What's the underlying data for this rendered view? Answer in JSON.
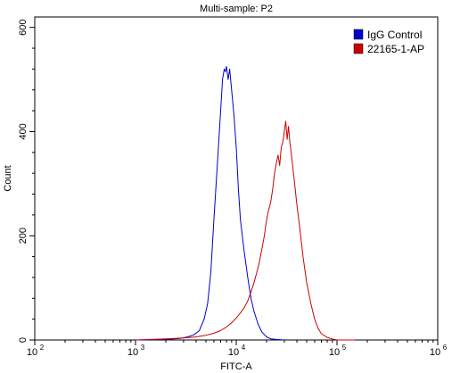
{
  "chart_data": {
    "type": "line",
    "title": "Multi-sample: P2",
    "xlabel": "FITC-A",
    "ylabel": "Count",
    "xscale": "log",
    "xlim": [
      100,
      1000000
    ],
    "ylim": [
      0,
      620
    ],
    "x_ticks": [
      {
        "value": 100,
        "base": "10",
        "exp": "2"
      },
      {
        "value": 1000,
        "base": "10",
        "exp": "3"
      },
      {
        "value": 10000,
        "base": "10",
        "exp": "4"
      },
      {
        "value": 100000,
        "base": "10",
        "exp": "5"
      },
      {
        "value": 1000000,
        "base": "10",
        "exp": "6"
      }
    ],
    "y_ticks": [
      "0",
      "200",
      "400",
      "600"
    ],
    "legend_position": "top-right",
    "series": [
      {
        "name": "IgG Control",
        "color": "#0000cc",
        "x": [
          1000,
          2000,
          2800,
          3300,
          3800,
          4300,
          4800,
          5200,
          5600,
          6000,
          6500,
          7000,
          7300,
          7600,
          7800,
          8000,
          8300,
          8600,
          9000,
          9500,
          10000,
          10500,
          11000,
          12000,
          13000,
          14000,
          15000,
          16500,
          18000,
          20000,
          22000,
          25000,
          30000
        ],
        "y": [
          0,
          1,
          3,
          6,
          10,
          18,
          40,
          70,
          130,
          230,
          340,
          440,
          500,
          520,
          515,
          525,
          500,
          520,
          480,
          430,
          370,
          290,
          230,
          170,
          120,
          80,
          55,
          30,
          15,
          6,
          2,
          1,
          0
        ]
      },
      {
        "name": "22165-1-AP",
        "color": "#cc0000",
        "x": [
          1000,
          2000,
          3000,
          4000,
          5000,
          6000,
          7000,
          8000,
          9000,
          10000,
          11000,
          12000,
          13000,
          14000,
          15000,
          16000,
          17000,
          18000,
          19000,
          20000,
          21000,
          22000,
          23000,
          24000,
          25000,
          26000,
          27000,
          28000,
          29000,
          30000,
          31000,
          32000,
          33000,
          34000,
          36000,
          38000,
          40000,
          43000,
          46000,
          50000,
          55000,
          60000,
          65000,
          70000,
          80000,
          90000,
          100000,
          150000
        ],
        "y": [
          0,
          2,
          4,
          6,
          9,
          13,
          18,
          25,
          33,
          42,
          52,
          62,
          75,
          92,
          110,
          130,
          150,
          175,
          200,
          230,
          250,
          265,
          290,
          320,
          340,
          355,
          335,
          370,
          380,
          400,
          420,
          385,
          410,
          380,
          340,
          300,
          260,
          210,
          160,
          110,
          70,
          40,
          22,
          12,
          5,
          2,
          0,
          0
        ]
      }
    ]
  }
}
